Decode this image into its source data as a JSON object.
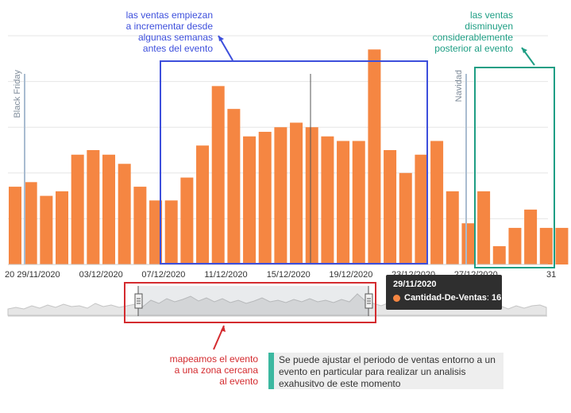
{
  "colors": {
    "bar": "#f58642",
    "blue": "#3d4fdc",
    "green": "#1e9e84",
    "red": "#d42b2f",
    "event_line": "#a9bcd0",
    "teal": "#3cb8a0"
  },
  "chart_data": {
    "type": "bar",
    "series": [
      {
        "name": "Cantidad-De-Ventas",
        "values": [
          17,
          18,
          15,
          16,
          24,
          25,
          24,
          22,
          17,
          14,
          14,
          19,
          26,
          39,
          34,
          28,
          29,
          30,
          31,
          30,
          28,
          27,
          27,
          47,
          25,
          20,
          24,
          27,
          16,
          9,
          16,
          4,
          8,
          12,
          8,
          8
        ]
      }
    ],
    "ylim": [
      0,
      50
    ],
    "x_tick_labels": [
      "20",
      "29/11/2020",
      "03/12/2020",
      "07/12/2020",
      "11/12/2020",
      "15/12/2020",
      "19/12/2020",
      "23/12/2020",
      "27/12/2020",
      "31"
    ],
    "events": [
      "Black Friday",
      "Navidad"
    ],
    "grid": true,
    "legend": "none"
  },
  "tooltip": {
    "date": "29/11/2020",
    "series": "Cantidad-De-Ventas",
    "value": "16"
  },
  "annotations": {
    "blue": [
      "las ventas empiezan",
      "a incrementar desde",
      "algunas semanas",
      "antes del evento"
    ],
    "green": [
      "las ventas",
      "disminuyen",
      "considerablemente",
      "posterior al evento"
    ],
    "red": [
      "mapeamos el evento",
      "a una zona cercana",
      "al evento"
    ],
    "note": "Se puede ajustar el periodo de ventas entorno a un evento en particular para realizar un analisis exahusitvo de este momento"
  }
}
